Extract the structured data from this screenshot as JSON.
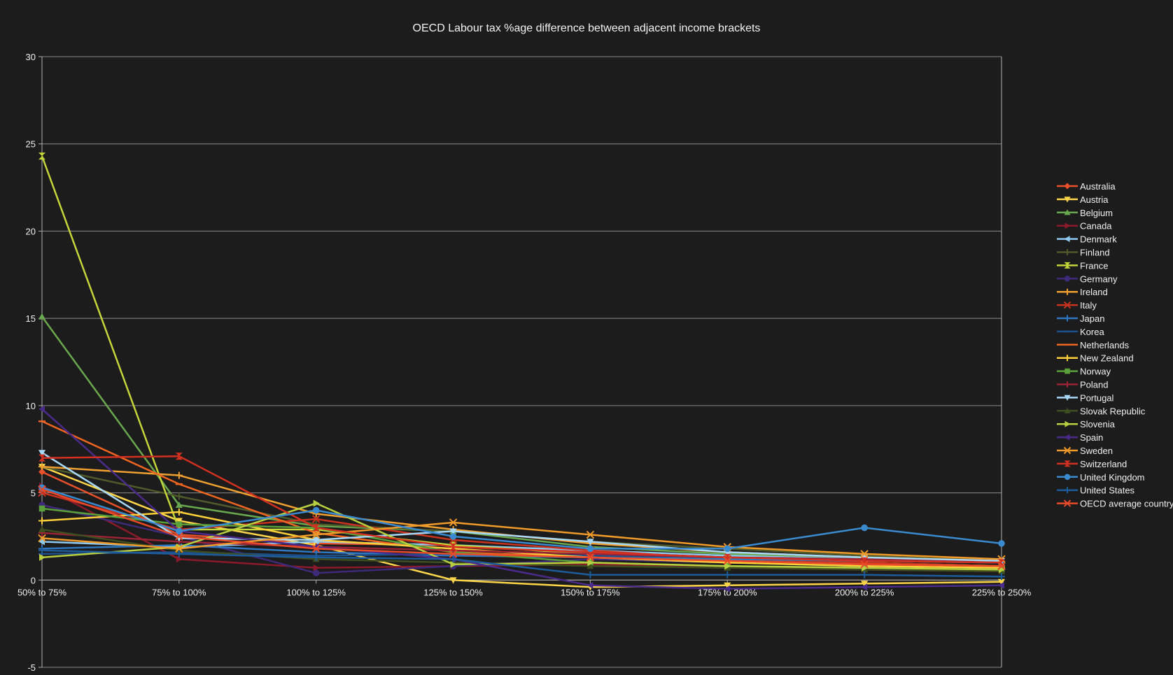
{
  "chart_data": {
    "type": "line",
    "title": "OECD Labour tax %age difference between adjacent income brackets",
    "xlabel": "",
    "ylabel": "",
    "categories": [
      "50% to 75%",
      "75% to 100%",
      "100% to 125%",
      "125% to 150%",
      "150% to 175%",
      "175% to 200%",
      "200% to 225%",
      "225% to 250%"
    ],
    "ylim": [
      -5,
      30
    ],
    "yticks": [
      -5,
      0,
      5,
      10,
      15,
      20,
      25,
      30
    ],
    "grid": true,
    "legend_position": "right",
    "series": [
      {
        "name": "Australia",
        "color": "#e8512a",
        "marker": "diamond",
        "values": [
          6.2,
          2.6,
          2.1,
          2.0,
          1.6,
          1.2,
          1.1,
          1.0
        ]
      },
      {
        "name": "Austria",
        "color": "#ffd54a",
        "marker": "triangle-down",
        "values": [
          6.5,
          3.4,
          2.0,
          0.0,
          -0.4,
          -0.3,
          -0.2,
          -0.1
        ]
      },
      {
        "name": "Belgium",
        "color": "#6aa84f",
        "marker": "triangle-up",
        "values": [
          15.1,
          4.3,
          3.1,
          2.8,
          1.9,
          1.5,
          1.2,
          1.0
        ]
      },
      {
        "name": "Canada",
        "color": "#8b1a2b",
        "marker": "triangle-right",
        "values": [
          5.4,
          1.2,
          0.7,
          0.8,
          0.9,
          0.7,
          0.6,
          0.5
        ]
      },
      {
        "name": "Denmark",
        "color": "#8ec9f2",
        "marker": "triangle-left",
        "values": [
          2.2,
          1.9,
          2.2,
          2.0,
          1.7,
          1.4,
          1.2,
          1.0
        ]
      },
      {
        "name": "Finland",
        "color": "#4e5a2a",
        "marker": "cross",
        "values": [
          6.5,
          4.8,
          3.2,
          2.8,
          2.2,
          1.8,
          1.4,
          1.1
        ]
      },
      {
        "name": "France",
        "color": "#c4d63a",
        "marker": "bowtie",
        "values": [
          24.3,
          2.9,
          2.9,
          2.0,
          1.5,
          1.2,
          1.0,
          0.8
        ]
      },
      {
        "name": "Germany",
        "color": "#3d2a7a",
        "marker": "circle",
        "values": [
          4.3,
          2.5,
          0.4,
          0.8,
          1.2,
          1.0,
          0.8,
          0.6
        ]
      },
      {
        "name": "Ireland",
        "color": "#f0a030",
        "marker": "plus",
        "values": [
          6.5,
          6.0,
          3.8,
          2.9,
          2.1,
          1.6,
          1.3,
          1.1
        ]
      },
      {
        "name": "Italy",
        "color": "#c8321e",
        "marker": "x",
        "values": [
          5.0,
          2.9,
          3.5,
          2.3,
          1.7,
          1.2,
          1.0,
          0.8
        ]
      },
      {
        "name": "Japan",
        "color": "#2f77c0",
        "marker": "plus",
        "values": [
          1.8,
          2.0,
          1.6,
          1.4,
          1.3,
          1.2,
          1.1,
          1.0
        ]
      },
      {
        "name": "Korea",
        "color": "#1c4f8c",
        "marker": "dash",
        "values": [
          1.5,
          1.6,
          1.4,
          1.5,
          1.4,
          1.3,
          1.2,
          1.1
        ]
      },
      {
        "name": "Netherlands",
        "color": "#f06520",
        "marker": "dash",
        "values": [
          9.1,
          5.5,
          2.7,
          1.6,
          1.3,
          1.0,
          0.9,
          0.8
        ]
      },
      {
        "name": "New Zealand",
        "color": "#ffcf3a",
        "marker": "plus",
        "values": [
          3.4,
          3.9,
          2.3,
          1.8,
          1.3,
          1.0,
          0.8,
          0.7
        ]
      },
      {
        "name": "Norway",
        "color": "#5aa03a",
        "marker": "square",
        "values": [
          4.1,
          3.2,
          3.0,
          1.6,
          1.0,
          0.8,
          0.7,
          0.6
        ]
      },
      {
        "name": "Poland",
        "color": "#9a2336",
        "marker": "plus",
        "values": [
          2.7,
          2.2,
          1.9,
          1.7,
          1.5,
          1.3,
          1.2,
          1.1
        ]
      },
      {
        "name": "Portugal",
        "color": "#a8d8f8",
        "marker": "triangle-down",
        "values": [
          7.3,
          2.4,
          2.3,
          2.8,
          2.2,
          1.6,
          1.3,
          1.1
        ]
      },
      {
        "name": "Slovak Republic",
        "color": "#3f4e1e",
        "marker": "triangle-up",
        "values": [
          2.9,
          1.7,
          1.2,
          1.0,
          0.8,
          0.7,
          0.6,
          0.5
        ]
      },
      {
        "name": "Slovenia",
        "color": "#b8d040",
        "marker": "triangle-right",
        "values": [
          1.3,
          1.9,
          4.4,
          0.9,
          1.0,
          0.8,
          0.7,
          0.6
        ]
      },
      {
        "name": "Spain",
        "color": "#4a2a8a",
        "marker": "triangle-left",
        "values": [
          9.8,
          2.8,
          1.9,
          1.2,
          -0.3,
          -0.5,
          -0.4,
          -0.3
        ]
      },
      {
        "name": "Sweden",
        "color": "#f09a2a",
        "marker": "x",
        "values": [
          2.4,
          1.8,
          2.6,
          3.3,
          2.6,
          1.9,
          1.5,
          1.2
        ]
      },
      {
        "name": "Switzerland",
        "color": "#d23020",
        "marker": "bowtie",
        "values": [
          7.0,
          7.1,
          3.0,
          1.9,
          1.6,
          1.3,
          1.1,
          1.0
        ]
      },
      {
        "name": "United Kingdom",
        "color": "#3a8ad0",
        "marker": "circle",
        "values": [
          5.3,
          2.8,
          4.0,
          2.5,
          1.8,
          1.8,
          3.0,
          2.1
        ]
      },
      {
        "name": "United States",
        "color": "#1d5c9a",
        "marker": "plus",
        "values": [
          1.7,
          1.5,
          1.3,
          1.2,
          0.3,
          0.3,
          0.3,
          0.2
        ]
      },
      {
        "name": "OECD average country",
        "color": "#e84a2a",
        "marker": "x",
        "values": [
          5.2,
          2.5,
          1.8,
          1.5,
          1.3,
          1.1,
          0.9,
          0.8
        ]
      }
    ]
  }
}
